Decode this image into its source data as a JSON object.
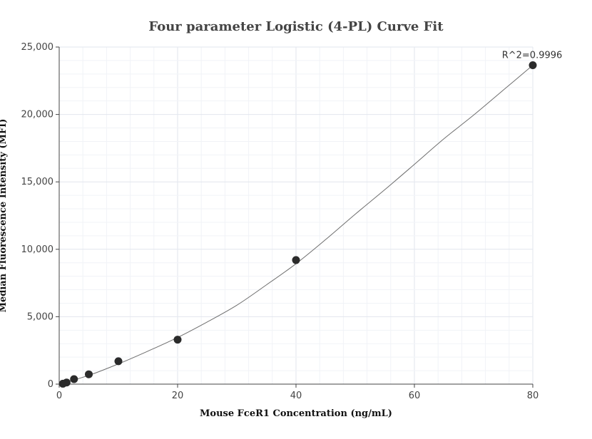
{
  "chart_data": {
    "type": "scatter",
    "title": "Four parameter Logistic (4-PL) Curve Fit",
    "xlabel": "Mouse FceR1 Concentration (ng/mL)",
    "ylabel": "Median Fluorescence Intensity (MFI)",
    "xlim": [
      0,
      80
    ],
    "ylim": [
      0,
      25000
    ],
    "x_ticks": [
      0,
      20,
      40,
      60,
      80
    ],
    "x_tick_labels": [
      "0",
      "20",
      "40",
      "60",
      "80"
    ],
    "y_ticks": [
      0,
      5000,
      10000,
      15000,
      20000,
      25000
    ],
    "y_tick_labels": [
      "0",
      "5,000",
      "10,000",
      "15,000",
      "20,000",
      "25,000"
    ],
    "grid": true,
    "points": [
      {
        "x": 0.625,
        "y": 30
      },
      {
        "x": 1.25,
        "y": 120
      },
      {
        "x": 2.5,
        "y": 370
      },
      {
        "x": 5,
        "y": 730
      },
      {
        "x": 10,
        "y": 1700
      },
      {
        "x": 20,
        "y": 3300
      },
      {
        "x": 40,
        "y": 9200
      },
      {
        "x": 80,
        "y": 23650
      }
    ],
    "fit_curve": {
      "x": [
        0,
        5,
        10,
        15,
        20,
        25,
        30,
        35,
        40,
        45,
        50,
        55,
        60,
        65,
        70,
        75,
        80
      ],
      "y": [
        0,
        650,
        1500,
        2450,
        3460,
        4610,
        5850,
        7360,
        8930,
        10720,
        12600,
        14420,
        16300,
        18200,
        19950,
        21800,
        23650
      ]
    },
    "annotation": "R^2=0.9996",
    "colors": {
      "point": "#2b2b2b",
      "curve": "#6e6e6e",
      "grid_major": "#e2e6ee",
      "grid_minor": "#f1f3f7",
      "axis": "#444444"
    }
  }
}
